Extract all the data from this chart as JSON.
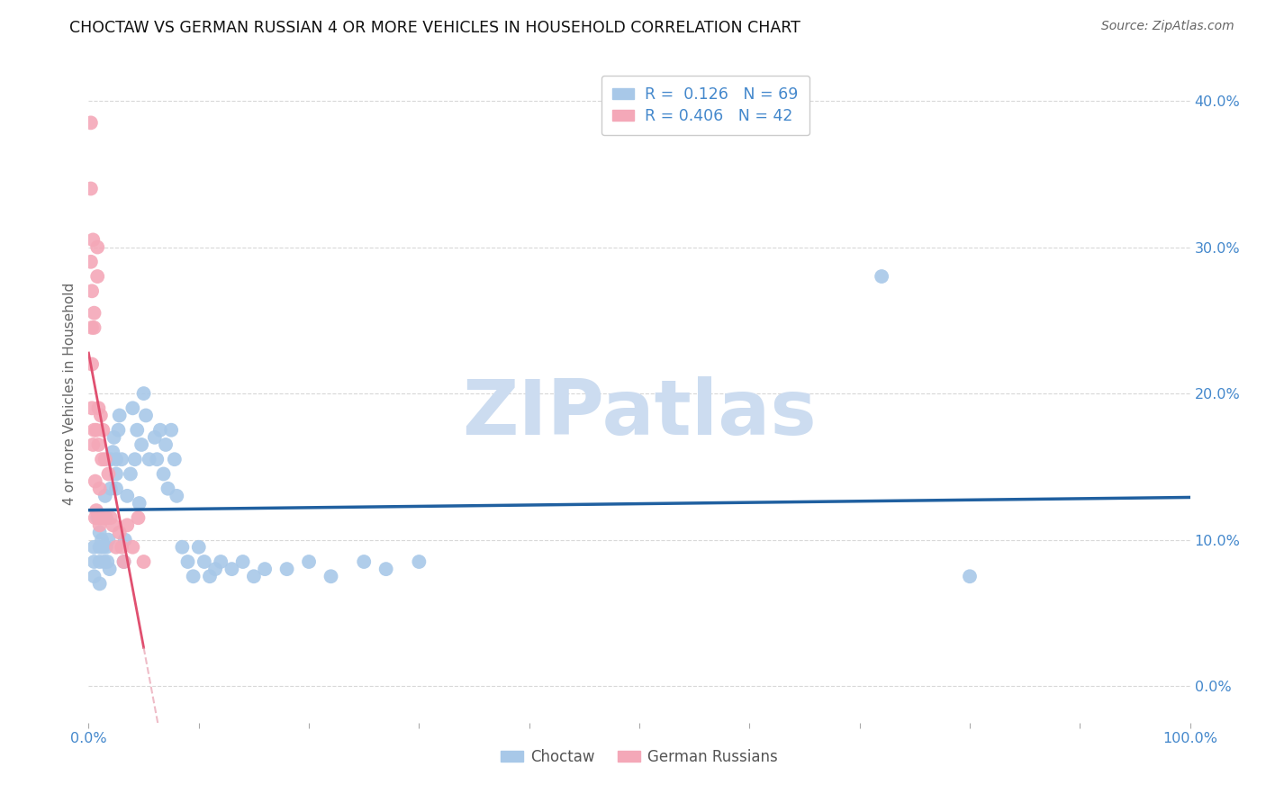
{
  "title": "CHOCTAW VS GERMAN RUSSIAN 4 OR MORE VEHICLES IN HOUSEHOLD CORRELATION CHART",
  "source": "Source: ZipAtlas.com",
  "ylabel": "4 or more Vehicles in Household",
  "xlim": [
    0.0,
    1.0
  ],
  "ylim": [
    -0.025,
    0.425
  ],
  "y_ticks": [
    0.0,
    0.1,
    0.2,
    0.3,
    0.4
  ],
  "y_tick_labels": [
    "0.0%",
    "10.0%",
    "20.0%",
    "30.0%",
    "40.0%"
  ],
  "x_tick_pos": [
    0.0,
    0.1,
    0.2,
    0.3,
    0.4,
    0.5,
    0.6,
    0.7,
    0.8,
    0.9,
    1.0
  ],
  "x_tick_labels": [
    "0.0%",
    "",
    "",
    "",
    "",
    "",
    "",
    "",
    "",
    "",
    "100.0%"
  ],
  "choctaw_R": 0.126,
  "choctaw_N": 69,
  "german_russian_R": 0.406,
  "german_russian_N": 42,
  "choctaw_color": "#a8c8e8",
  "german_russian_color": "#f4a8b8",
  "choctaw_line_color": "#2060a0",
  "german_russian_line_color": "#e05070",
  "german_russian_dash_color": "#e8a0b0",
  "watermark": "ZIPatlas",
  "watermark_color": "#ccdcf0",
  "background_color": "#ffffff",
  "grid_color": "#d8d8d8",
  "legend_edge_color": "#cccccc",
  "tick_label_color": "#4488cc",
  "ylabel_color": "#666666",
  "title_color": "#111111",
  "source_color": "#666666",
  "bottom_legend_color": "#555555",
  "choctaw_x": [
    0.005,
    0.005,
    0.005,
    0.008,
    0.01,
    0.01,
    0.01,
    0.01,
    0.01,
    0.012,
    0.013,
    0.014,
    0.015,
    0.015,
    0.016,
    0.017,
    0.018,
    0.019,
    0.02,
    0.02,
    0.022,
    0.023,
    0.025,
    0.025,
    0.025,
    0.027,
    0.028,
    0.03,
    0.032,
    0.033,
    0.035,
    0.038,
    0.04,
    0.042,
    0.044,
    0.046,
    0.048,
    0.05,
    0.052,
    0.055,
    0.06,
    0.062,
    0.065,
    0.068,
    0.07,
    0.072,
    0.075,
    0.078,
    0.08,
    0.085,
    0.09,
    0.095,
    0.1,
    0.105,
    0.11,
    0.115,
    0.12,
    0.13,
    0.14,
    0.15,
    0.16,
    0.18,
    0.2,
    0.22,
    0.25,
    0.27,
    0.3,
    0.72,
    0.8
  ],
  "choctaw_y": [
    0.095,
    0.085,
    0.075,
    0.115,
    0.115,
    0.105,
    0.095,
    0.085,
    0.07,
    0.1,
    0.095,
    0.085,
    0.13,
    0.115,
    0.095,
    0.085,
    0.1,
    0.08,
    0.155,
    0.135,
    0.16,
    0.17,
    0.155,
    0.145,
    0.135,
    0.175,
    0.185,
    0.155,
    0.085,
    0.1,
    0.13,
    0.145,
    0.19,
    0.155,
    0.175,
    0.125,
    0.165,
    0.2,
    0.185,
    0.155,
    0.17,
    0.155,
    0.175,
    0.145,
    0.165,
    0.135,
    0.175,
    0.155,
    0.13,
    0.095,
    0.085,
    0.075,
    0.095,
    0.085,
    0.075,
    0.08,
    0.085,
    0.08,
    0.085,
    0.075,
    0.08,
    0.08,
    0.085,
    0.075,
    0.085,
    0.08,
    0.085,
    0.28,
    0.075
  ],
  "german_russian_x": [
    0.002,
    0.002,
    0.002,
    0.003,
    0.003,
    0.003,
    0.004,
    0.004,
    0.005,
    0.005,
    0.005,
    0.006,
    0.006,
    0.007,
    0.007,
    0.008,
    0.008,
    0.009,
    0.009,
    0.01,
    0.01,
    0.01,
    0.011,
    0.012,
    0.012,
    0.013,
    0.013,
    0.015,
    0.015,
    0.016,
    0.018,
    0.02,
    0.022,
    0.025,
    0.028,
    0.03,
    0.032,
    0.035,
    0.04,
    0.045,
    0.05,
    0.003
  ],
  "german_russian_y": [
    0.385,
    0.34,
    0.29,
    0.27,
    0.245,
    0.19,
    0.305,
    0.165,
    0.255,
    0.245,
    0.175,
    0.14,
    0.115,
    0.175,
    0.12,
    0.3,
    0.28,
    0.19,
    0.165,
    0.135,
    0.115,
    0.11,
    0.185,
    0.115,
    0.155,
    0.175,
    0.115,
    0.115,
    0.155,
    0.115,
    0.145,
    0.115,
    0.11,
    0.095,
    0.105,
    0.095,
    0.085,
    0.11,
    0.095,
    0.115,
    0.085,
    0.22
  ]
}
